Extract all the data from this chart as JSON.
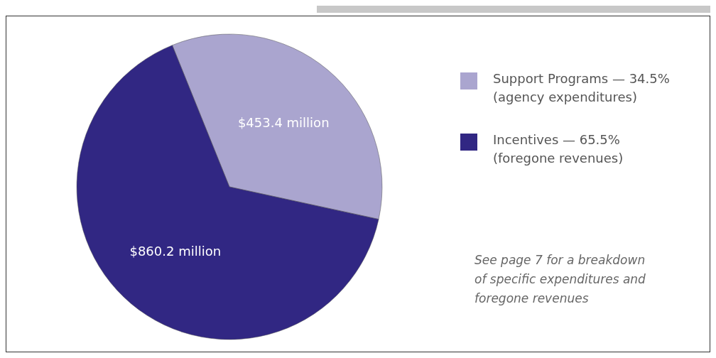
{
  "chart_data": {
    "type": "pie",
    "categories": [
      "Support Programs — 34.5%\n(agency expenditures)",
      "Incentives — 65.5%\n(foregone revenues)"
    ],
    "values": [
      453.4,
      860.2
    ],
    "colors": [
      "#aaa5cf",
      "#312783"
    ],
    "value_labels": [
      "$453.4 million",
      "$860.2 million"
    ],
    "legend": "right",
    "annotations": [
      "See page 7 for a  breakdown\nof specific expenditures and\nforegone revenues"
    ]
  }
}
